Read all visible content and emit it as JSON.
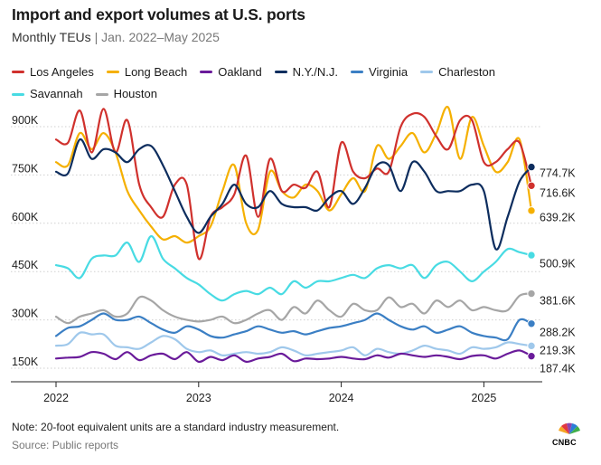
{
  "header": {
    "title": "Import and export volumes at U.S. ports",
    "subtitle_main": "Monthly TEUs",
    "subtitle_sep": "|",
    "subtitle_range": "Jan. 2022–May 2025"
  },
  "footer": {
    "note": "Note: 20-foot equivalent units are a standard industry measurement.",
    "source": "Source: Public reports",
    "logo_text": "CNBC"
  },
  "chart_data": {
    "type": "line",
    "xlabel": "",
    "ylabel": "",
    "x_ticks": [
      "2022",
      "2023",
      "2024",
      "2025"
    ],
    "y_ticks": [
      "150K",
      "300K",
      "450K",
      "600K",
      "750K",
      "900K"
    ],
    "y_tick_values": [
      150000,
      300000,
      450000,
      600000,
      750000,
      900000
    ],
    "ylim": [
      120000,
      1000000
    ],
    "x_start": "2022-01",
    "x_end": "2025-05",
    "grid": "horizontal-dotted",
    "legend_position": "top",
    "months": [
      "2022-01",
      "2022-02",
      "2022-03",
      "2022-04",
      "2022-05",
      "2022-06",
      "2022-07",
      "2022-08",
      "2022-09",
      "2022-10",
      "2022-11",
      "2022-12",
      "2023-01",
      "2023-02",
      "2023-03",
      "2023-04",
      "2023-05",
      "2023-06",
      "2023-07",
      "2023-08",
      "2023-09",
      "2023-10",
      "2023-11",
      "2023-12",
      "2024-01",
      "2024-02",
      "2024-03",
      "2024-04",
      "2024-05",
      "2024-06",
      "2024-07",
      "2024-08",
      "2024-09",
      "2024-10",
      "2024-11",
      "2024-12",
      "2025-01",
      "2025-02",
      "2025-03",
      "2025-04",
      "2025-05"
    ],
    "series": [
      {
        "name": "Los Angeles",
        "color": "#d0312d",
        "end_label": "716.6K",
        "values": [
          860000,
          850000,
          950000,
          820000,
          955000,
          820000,
          920000,
          720000,
          650000,
          620000,
          720000,
          720000,
          490000,
          620000,
          650000,
          690000,
          810000,
          620000,
          800000,
          700000,
          720000,
          710000,
          760000,
          650000,
          850000,
          760000,
          740000,
          770000,
          760000,
          900000,
          940000,
          930000,
          870000,
          830000,
          920000,
          920000,
          790000,
          790000,
          830000,
          850000,
          716600
        ]
      },
      {
        "name": "Long Beach",
        "color": "#f5b000",
        "end_label": "639.2K",
        "values": [
          790000,
          780000,
          880000,
          830000,
          880000,
          820000,
          700000,
          640000,
          590000,
          550000,
          560000,
          540000,
          560000,
          590000,
          700000,
          780000,
          600000,
          580000,
          760000,
          700000,
          680000,
          720000,
          700000,
          640000,
          690000,
          740000,
          700000,
          840000,
          800000,
          840000,
          880000,
          820000,
          880000,
          960000,
          800000,
          930000,
          840000,
          760000,
          790000,
          860000,
          639200
        ]
      },
      {
        "name": "Oakland",
        "color": "#6a1b9a",
        "end_label": "187.4K",
        "values": [
          180000,
          183000,
          185000,
          200000,
          195000,
          178000,
          200000,
          175000,
          190000,
          195000,
          178000,
          200000,
          170000,
          185000,
          175000,
          190000,
          170000,
          180000,
          185000,
          195000,
          172000,
          180000,
          178000,
          180000,
          185000,
          180000,
          178000,
          190000,
          183000,
          195000,
          190000,
          185000,
          190000,
          185000,
          178000,
          188000,
          190000,
          180000,
          195000,
          205000,
          187400
        ]
      },
      {
        "name": "N.Y./N.J.",
        "color": "#0d2d5e",
        "end_label": "774.7K",
        "values": [
          760000,
          755000,
          860000,
          800000,
          830000,
          820000,
          790000,
          830000,
          840000,
          780000,
          700000,
          620000,
          570000,
          620000,
          660000,
          720000,
          660000,
          650000,
          700000,
          660000,
          650000,
          650000,
          640000,
          680000,
          700000,
          660000,
          710000,
          780000,
          780000,
          700000,
          790000,
          760000,
          700000,
          700000,
          700000,
          720000,
          700000,
          520000,
          620000,
          730000,
          774700
        ]
      },
      {
        "name": "Virginia",
        "color": "#3b7fc4",
        "end_label": "288.2K",
        "values": [
          250000,
          275000,
          280000,
          300000,
          320000,
          300000,
          300000,
          310000,
          290000,
          270000,
          260000,
          280000,
          270000,
          250000,
          245000,
          255000,
          265000,
          280000,
          270000,
          260000,
          265000,
          255000,
          265000,
          275000,
          280000,
          290000,
          300000,
          320000,
          300000,
          280000,
          270000,
          280000,
          260000,
          270000,
          280000,
          260000,
          250000,
          245000,
          240000,
          300000,
          288200
        ]
      },
      {
        "name": "Charleston",
        "color": "#9fc8eb",
        "end_label": "219.3K",
        "values": [
          220000,
          225000,
          260000,
          255000,
          255000,
          220000,
          215000,
          210000,
          230000,
          250000,
          240000,
          210000,
          200000,
          205000,
          190000,
          195000,
          200000,
          195000,
          200000,
          215000,
          205000,
          190000,
          195000,
          200000,
          205000,
          215000,
          190000,
          210000,
          200000,
          195000,
          205000,
          220000,
          210000,
          205000,
          195000,
          215000,
          210000,
          215000,
          230000,
          225000,
          219300
        ]
      },
      {
        "name": "Savannah",
        "color": "#48dbe3",
        "end_label": "500.9K",
        "values": [
          470000,
          460000,
          430000,
          490000,
          500000,
          500000,
          540000,
          480000,
          560000,
          490000,
          460000,
          430000,
          410000,
          380000,
          360000,
          380000,
          390000,
          380000,
          400000,
          380000,
          420000,
          400000,
          420000,
          420000,
          430000,
          440000,
          430000,
          460000,
          470000,
          460000,
          470000,
          430000,
          470000,
          480000,
          450000,
          420000,
          450000,
          480000,
          520000,
          510000,
          500900
        ]
      },
      {
        "name": "Houston",
        "color": "#a6a6a6",
        "end_label": "381.6K",
        "values": [
          310000,
          290000,
          310000,
          320000,
          330000,
          310000,
          320000,
          370000,
          360000,
          330000,
          310000,
          300000,
          295000,
          300000,
          310000,
          290000,
          300000,
          320000,
          330000,
          300000,
          340000,
          320000,
          360000,
          330000,
          310000,
          350000,
          330000,
          330000,
          370000,
          340000,
          350000,
          320000,
          360000,
          340000,
          360000,
          330000,
          340000,
          330000,
          330000,
          375000,
          381600
        ]
      }
    ]
  }
}
